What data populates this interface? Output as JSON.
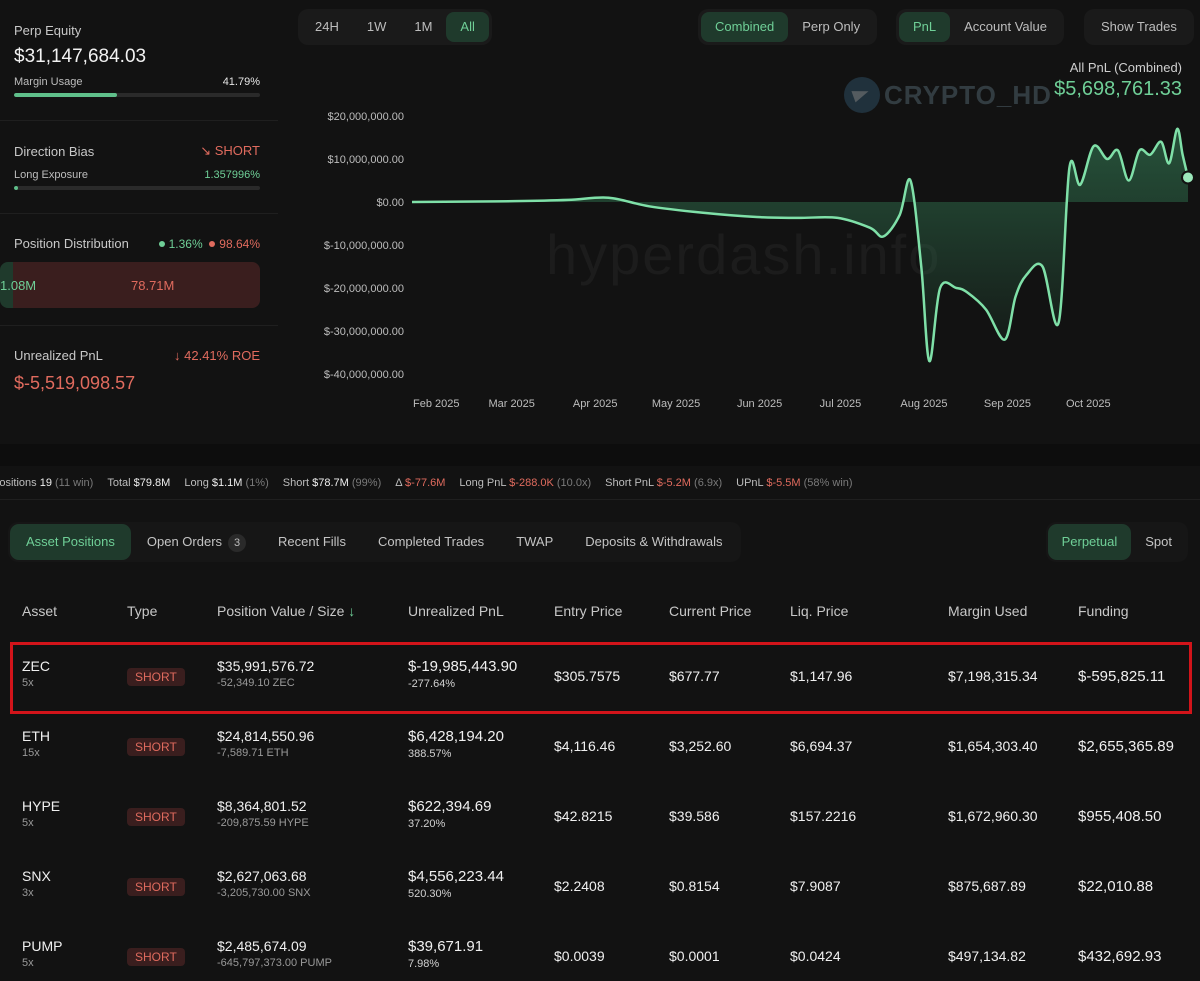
{
  "summary": {
    "perp_equity_label": "Perp Equity",
    "perp_equity": "$31,147,684.03",
    "margin_usage_label": "Margin Usage",
    "margin_usage": "41.79%",
    "margin_usage_fraction": 0.4179,
    "direction_bias_label": "Direction Bias",
    "direction_bias": "SHORT",
    "long_exposure_label": "Long Exposure",
    "long_exposure": "1.357996%",
    "long_exposure_fraction": 0.01357996,
    "position_distribution_label": "Position Distribution",
    "dist_long_pct": "1.36%",
    "dist_short_pct": "98.64%",
    "dist_long_value": "1.08M",
    "dist_short_value": "78.71M",
    "unrealized_pnl_label": "Unrealized PnL",
    "roe": "42.41% ROE",
    "unrealized_pnl": "$-5,519,098.57"
  },
  "controls": {
    "ranges": [
      "24H",
      "1W",
      "1M",
      "All"
    ],
    "active_range": "All",
    "views": [
      "Combined",
      "Perp Only"
    ],
    "active_view": "Combined",
    "metrics": [
      "PnL",
      "Account Value"
    ],
    "active_metric": "PnL",
    "show_trades": "Show Trades"
  },
  "pnl_header": {
    "label": "All PnL (Combined)",
    "value": "$5,698,761.33"
  },
  "watermark": {
    "logo_text": "CRYPTO_HD",
    "site_text": "hyperdash.info"
  },
  "chart_data": {
    "type": "area",
    "title": "",
    "xlabel": "",
    "ylabel": "",
    "ylim": [
      -40000000,
      20000000
    ],
    "y_ticks": [
      "$20,000,000.00",
      "$10,000,000.00",
      "$0.00",
      "$-10,000,000.00",
      "$-20,000,000.00",
      "$-30,000,000.00",
      "$-40,000,000.00"
    ],
    "y_tick_values": [
      20000000,
      10000000,
      0,
      -10000000,
      -20000000,
      -30000000,
      -40000000
    ],
    "x_ticks": [
      "Feb 2025",
      "Mar 2025",
      "Apr 2025",
      "May 2025",
      "Jun 2025",
      "Jul 2025",
      "Aug 2025",
      "Sep 2025",
      "Oct 2025"
    ],
    "x_tick_days": [
      31,
      59,
      90,
      120,
      151,
      181,
      212,
      243,
      273
    ],
    "x_range_days": [
      22,
      310
    ],
    "series": [
      {
        "x": [
          22,
          40,
          60,
          80,
          95,
          110,
          130,
          150,
          165,
          180,
          192,
          197,
          203,
          207,
          211,
          214,
          218,
          224,
          228,
          235,
          242,
          246,
          250,
          256,
          262,
          266,
          270,
          275,
          280,
          284,
          288,
          292,
          296,
          300,
          303,
          306,
          308,
          310
        ],
        "y": [
          0,
          100000,
          200000,
          500000,
          1000000,
          -1000000,
          -2500000,
          -3500000,
          -3700000,
          -3700000,
          -6000000,
          -8000000,
          -3000000,
          5000000,
          -15000000,
          -37000000,
          -20000000,
          -20000000,
          -21000000,
          -25000000,
          -32000000,
          -22000000,
          -17000000,
          -15000000,
          -28000000,
          8000000,
          4000000,
          13000000,
          10000000,
          12000000,
          5000000,
          12000000,
          11000000,
          14000000,
          9000000,
          17000000,
          11000000,
          5700000
        ]
      }
    ]
  },
  "stats": {
    "positions_label": "Positions",
    "positions": "19",
    "positions_win": "(11 win)",
    "total_label": "Total",
    "total": "$79.8M",
    "long_label": "Long",
    "long": "$1.1M",
    "long_pct": "(1%)",
    "short_label": "Short",
    "short": "$78.7M",
    "short_pct": "(99%)",
    "delta_label": "Δ",
    "delta": "$-77.6M",
    "long_pnl_label": "Long PnL",
    "long_pnl": "$-288.0K",
    "long_pnl_x": "(10.0x)",
    "short_pnl_label": "Short PnL",
    "short_pnl": "$-5.2M",
    "short_pnl_x": "(6.9x)",
    "upnl_label": "UPnL",
    "upnl": "$-5.5M",
    "upnl_win": "(58% win)"
  },
  "tabs": {
    "asset_positions": "Asset Positions",
    "open_orders": "Open Orders",
    "open_orders_count": "3",
    "recent_fills": "Recent Fills",
    "completed_trades": "Completed Trades",
    "twap": "TWAP",
    "deposits": "Deposits & Withdrawals",
    "perpetual": "Perpetual",
    "spot": "Spot"
  },
  "table": {
    "headers": {
      "asset": "Asset",
      "type": "Type",
      "position_value": "Position Value / Size",
      "unrealized_pnl": "Unrealized PnL",
      "entry_price": "Entry Price",
      "current_price": "Current Price",
      "liq_price": "Liq. Price",
      "margin_used": "Margin Used",
      "funding": "Funding"
    },
    "rows": [
      {
        "asset": "ZEC",
        "lev": "5x",
        "type": "SHORT",
        "value": "$35,991,576.72",
        "size": "-52,349.10 ZEC",
        "upnl": "$-19,985,443.90",
        "upnl_pct": "-277.64%",
        "upnl_pos": false,
        "entry": "$305.7575",
        "current": "$677.77",
        "liq": "$1,147.96",
        "margin": "$7,198,315.34",
        "funding": "$-595,825.11",
        "funding_pos": false
      },
      {
        "asset": "ETH",
        "lev": "15x",
        "type": "SHORT",
        "value": "$24,814,550.96",
        "size": "-7,589.71 ETH",
        "upnl": "$6,428,194.20",
        "upnl_pct": "388.57%",
        "upnl_pos": true,
        "entry": "$4,116.46",
        "current": "$3,252.60",
        "liq": "$6,694.37",
        "margin": "$1,654,303.40",
        "funding": "$2,655,365.89",
        "funding_pos": true
      },
      {
        "asset": "HYPE",
        "lev": "5x",
        "type": "SHORT",
        "value": "$8,364,801.52",
        "size": "-209,875.59 HYPE",
        "upnl": "$622,394.69",
        "upnl_pct": "37.20%",
        "upnl_pos": true,
        "entry": "$42.8215",
        "current": "$39.586",
        "liq": "$157.2216",
        "margin": "$1,672,960.30",
        "funding": "$955,408.50",
        "funding_pos": true
      },
      {
        "asset": "SNX",
        "lev": "3x",
        "type": "SHORT",
        "value": "$2,627,063.68",
        "size": "-3,205,730.00 SNX",
        "upnl": "$4,556,223.44",
        "upnl_pct": "520.30%",
        "upnl_pos": true,
        "entry": "$2.2408",
        "current": "$0.8154",
        "liq": "$7.9087",
        "margin": "$875,687.89",
        "funding": "$22,010.88",
        "funding_pos": true
      },
      {
        "asset": "PUMP",
        "lev": "5x",
        "type": "SHORT",
        "value": "$2,485,674.09",
        "size": "-645,797,373.00 PUMP",
        "upnl": "$39,671.91",
        "upnl_pct": "7.98%",
        "upnl_pos": true,
        "entry": "$0.0039",
        "current": "$0.0001",
        "liq": "$0.0424",
        "margin": "$497,134.82",
        "funding": "$432,692.93",
        "funding_pos": true
      }
    ]
  }
}
